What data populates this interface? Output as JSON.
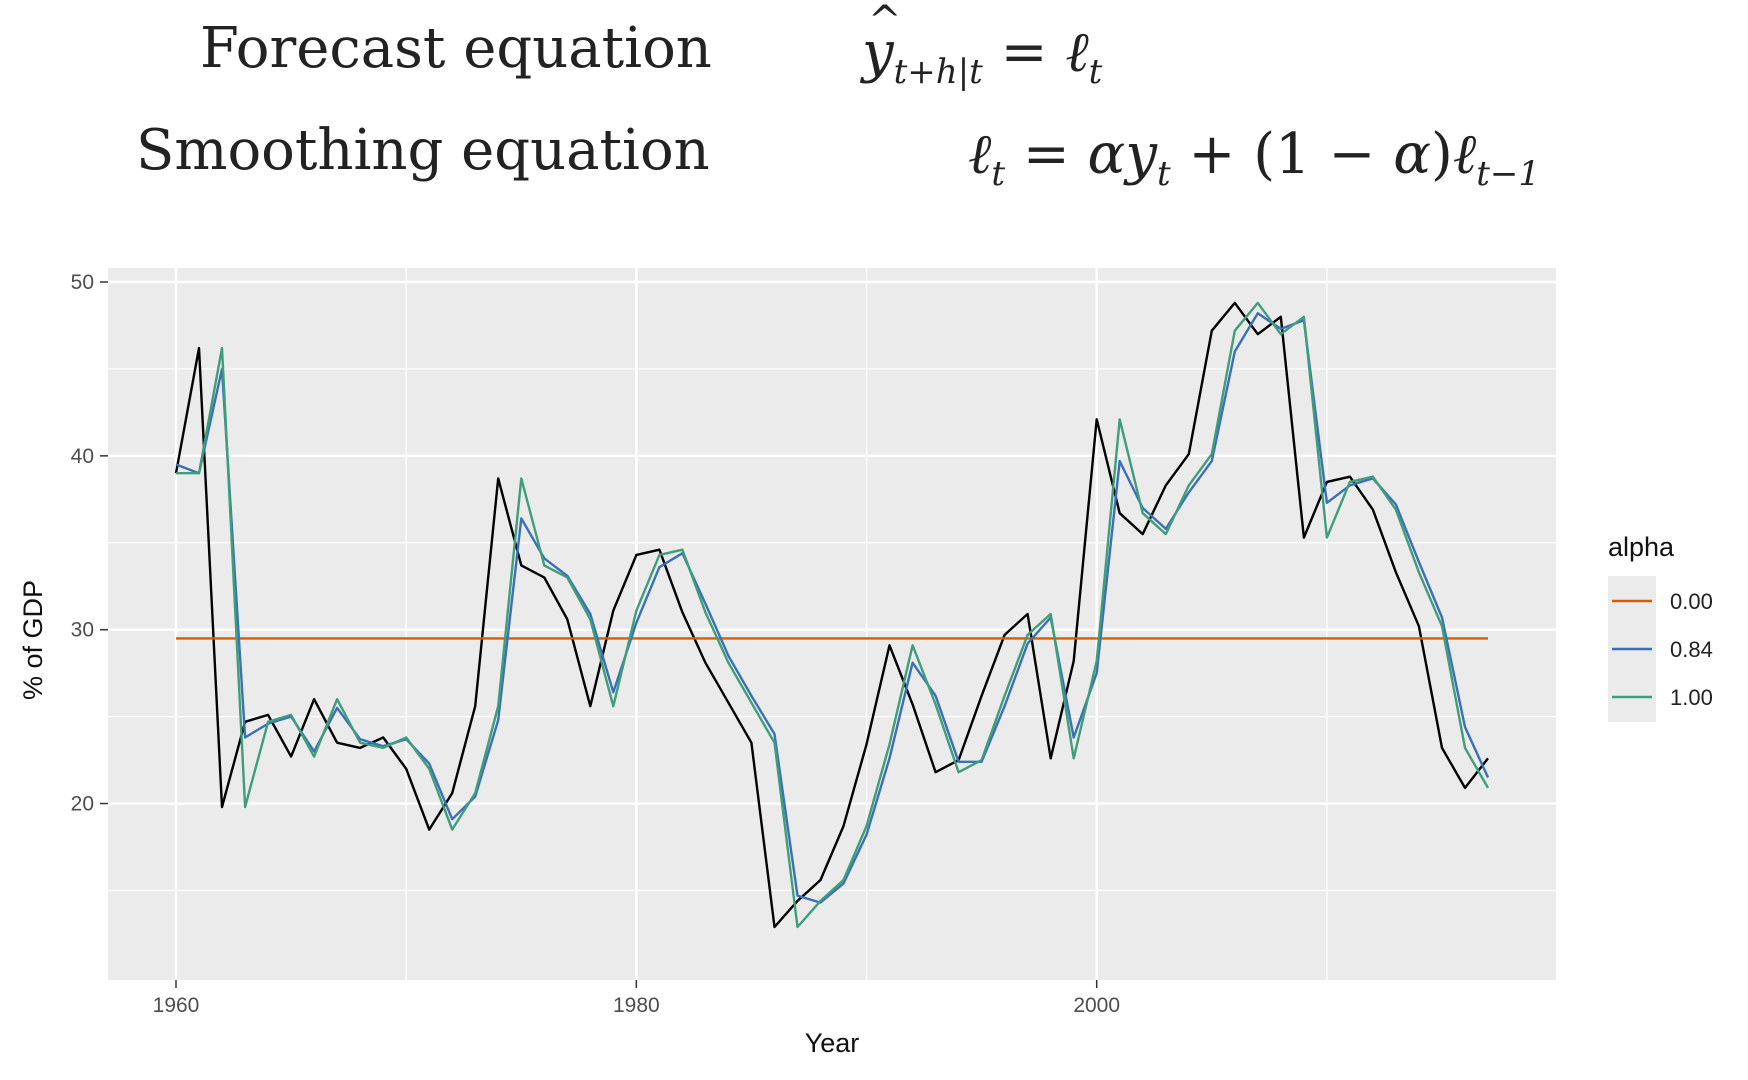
{
  "equations": {
    "forecast_label": "Forecast equation",
    "smoothing_label": "Smoothing equation"
  },
  "chart_data": {
    "type": "line",
    "xlabel": "Year",
    "ylabel": "% of GDP",
    "xlim": [
      1960,
      2017
    ],
    "ylim": [
      11,
      50
    ],
    "xticks": [
      1960,
      1980,
      2000
    ],
    "yticks": [
      20,
      30,
      40,
      50
    ],
    "grid": true,
    "legend": {
      "title": "alpha",
      "position": "right"
    },
    "x": [
      1960,
      1961,
      1962,
      1963,
      1964,
      1965,
      1966,
      1967,
      1968,
      1969,
      1970,
      1971,
      1972,
      1973,
      1974,
      1975,
      1976,
      1977,
      1978,
      1979,
      1980,
      1981,
      1982,
      1983,
      1984,
      1985,
      1986,
      1987,
      1988,
      1989,
      1990,
      1991,
      1992,
      1993,
      1994,
      1995,
      1996,
      1997,
      1998,
      1999,
      2000,
      2001,
      2002,
      2003,
      2004,
      2005,
      2006,
      2007,
      2008,
      2009,
      2010,
      2011,
      2012,
      2013,
      2014,
      2015,
      2016,
      2017
    ],
    "observed": {
      "color": "#000000",
      "values": [
        39.0,
        46.2,
        19.8,
        24.7,
        25.1,
        22.7,
        26.0,
        23.5,
        23.2,
        23.8,
        22.0,
        18.5,
        20.6,
        25.6,
        38.7,
        33.7,
        33.0,
        30.6,
        25.6,
        31.1,
        34.3,
        34.6,
        31.0,
        28.1,
        25.8,
        23.5,
        12.9,
        14.4,
        15.6,
        18.7,
        23.4,
        29.1,
        25.7,
        21.8,
        22.5,
        26.2,
        29.7,
        30.9,
        22.6,
        28.2,
        42.1,
        36.7,
        35.5,
        38.3,
        40.1,
        47.2,
        48.8,
        47.0,
        48.0,
        35.3,
        38.5,
        38.8,
        36.9,
        33.3,
        30.2,
        23.2,
        20.9,
        22.6
      ]
    },
    "series": [
      {
        "name": "0.00",
        "color": "#D55E00",
        "values": [
          29.5,
          29.5,
          29.5,
          29.5,
          29.5,
          29.5,
          29.5,
          29.5,
          29.5,
          29.5,
          29.5,
          29.5,
          29.5,
          29.5,
          29.5,
          29.5,
          29.5,
          29.5,
          29.5,
          29.5,
          29.5,
          29.5,
          29.5,
          29.5,
          29.5,
          29.5,
          29.5,
          29.5,
          29.5,
          29.5,
          29.5,
          29.5,
          29.5,
          29.5,
          29.5,
          29.5,
          29.5,
          29.5,
          29.5,
          29.5,
          29.5,
          29.5,
          29.5,
          29.5,
          29.5,
          29.5,
          29.5,
          29.5,
          29.5,
          29.5,
          29.5,
          29.5,
          29.5,
          29.5,
          29.5,
          29.5,
          29.5,
          29.5
        ]
      },
      {
        "name": "0.84",
        "color": "#3B6FB6",
        "values": [
          39.5,
          39.0,
          45.0,
          23.8,
          24.6,
          25.0,
          23.0,
          25.5,
          23.7,
          23.3,
          23.7,
          22.3,
          19.1,
          20.4,
          24.8,
          36.4,
          34.1,
          33.1,
          30.9,
          26.4,
          30.4,
          33.6,
          34.4,
          31.5,
          28.5,
          26.2,
          24.0,
          14.7,
          14.3,
          15.4,
          18.2,
          22.6,
          28.1,
          26.2,
          22.4,
          22.4,
          25.6,
          29.2,
          30.7,
          23.8,
          27.5,
          39.7,
          37.0,
          35.8,
          37.9,
          39.7,
          46.0,
          48.2,
          47.3,
          47.8,
          37.3,
          38.3,
          38.7,
          37.2,
          33.9,
          30.7,
          24.4,
          21.5
        ]
      },
      {
        "name": "1.00",
        "color": "#3F9E7A",
        "values": [
          39.0,
          39.0,
          46.2,
          19.8,
          24.7,
          25.1,
          22.7,
          26.0,
          23.5,
          23.2,
          23.8,
          22.0,
          18.5,
          20.6,
          25.6,
          38.7,
          33.7,
          33.0,
          30.6,
          25.6,
          31.1,
          34.3,
          34.6,
          31.0,
          28.1,
          25.8,
          23.5,
          12.9,
          14.4,
          15.6,
          18.7,
          23.4,
          29.1,
          25.7,
          21.8,
          22.5,
          26.2,
          29.7,
          30.9,
          22.6,
          28.2,
          42.1,
          36.7,
          35.5,
          38.3,
          40.1,
          47.2,
          48.8,
          47.0,
          48.0,
          35.3,
          38.5,
          38.8,
          36.9,
          33.3,
          30.2,
          23.2,
          20.9
        ]
      }
    ]
  }
}
